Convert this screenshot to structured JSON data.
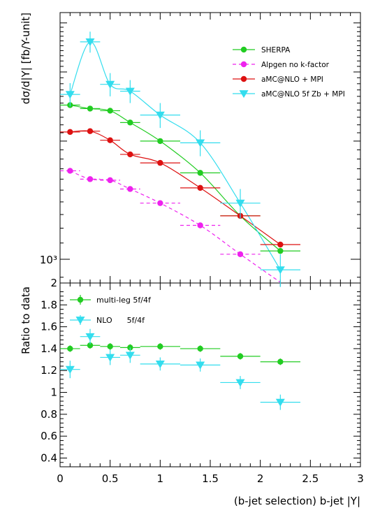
{
  "colors": {
    "sherpa": "#22cc22",
    "alpgen": "#ee22ee",
    "amcnlo": "#dd1111",
    "amcnlo_zb": "#33ddee",
    "axis": "#000000"
  },
  "chart_data": [
    {
      "type": "scatter",
      "panel": "top",
      "ylabel": "dσ/d|Y| [fb/Y-unit]",
      "yscale": "log",
      "xlim": [
        0,
        3
      ],
      "ylim": [
        870,
        4250
      ],
      "ytick_labels": [
        {
          "value": 1000,
          "label": "10³"
        }
      ],
      "legend_position": "top-right",
      "series": [
        {
          "name": "SHERPA",
          "color_key": "sherpa",
          "marker": "circle",
          "line": "solid",
          "x": [
            0.1,
            0.3,
            0.5,
            0.7,
            1.0,
            1.4,
            1.8,
            2.2
          ],
          "xerr": [
            0.1,
            0.1,
            0.1,
            0.1,
            0.2,
            0.2,
            0.2,
            0.2
          ],
          "y": [
            2470,
            2420,
            2390,
            2230,
            2000,
            1660,
            1290,
            1050
          ]
        },
        {
          "name": "Alpgen no k-factor",
          "color_key": "alpgen",
          "marker": "circle",
          "line": "dashed",
          "x": [
            0.1,
            0.3,
            0.5,
            0.7,
            1.0,
            1.4,
            1.8,
            2.2
          ],
          "xerr": [
            0.1,
            0.1,
            0.1,
            0.1,
            0.2,
            0.2,
            0.2,
            0.2
          ],
          "y": [
            1680,
            1600,
            1590,
            1510,
            1390,
            1220,
            1030,
            null
          ]
        },
        {
          "name": "aMC@NLO + MPI",
          "color_key": "amcnlo",
          "marker": "circle",
          "line": "solid",
          "x": [
            0.1,
            0.3,
            0.5,
            0.7,
            1.0,
            1.4,
            1.8,
            2.2
          ],
          "xerr": [
            0.1,
            0.1,
            0.1,
            0.1,
            0.2,
            0.2,
            0.2,
            0.2
          ],
          "y": [
            2110,
            2120,
            2010,
            1850,
            1760,
            1520,
            1290,
            1090
          ]
        },
        {
          "name": "aMC@NLO 5f Zb + MPI",
          "color_key": "amcnlo_zb",
          "marker": "triangle-down",
          "line": "solid",
          "x": [
            0.1,
            0.3,
            0.5,
            0.7,
            1.0,
            1.4,
            1.8,
            2.2
          ],
          "xerr": [
            0.1,
            0.1,
            0.1,
            0.1,
            0.2,
            0.2,
            0.2,
            0.2
          ],
          "y": [
            2630,
            3580,
            2790,
            2680,
            2330,
            1980,
            1390,
            940
          ],
          "yerr": [
            180,
            220,
            190,
            180,
            170,
            150,
            120,
            90
          ]
        }
      ]
    },
    {
      "type": "scatter",
      "panel": "bottom",
      "xlabel": "(b-jet selection) b-jet |Y|",
      "ylabel": "Ratio to data",
      "xlim": [
        0,
        3
      ],
      "ylim": [
        0.32,
        2.0
      ],
      "x_ticks": [
        0,
        0.5,
        1,
        1.5,
        2,
        2.5,
        3
      ],
      "x_tick_labels": [
        "0",
        "0.5",
        "1",
        "1.5",
        "2",
        "2.5",
        "3"
      ],
      "y_ticks": [
        0.4,
        0.6,
        0.8,
        1,
        1.2,
        1.4,
        1.6,
        1.8,
        2
      ],
      "y_tick_labels": [
        "0.4",
        "0.6",
        "0.8",
        "1",
        "1.2",
        "1.4",
        "1.6",
        "1.8",
        "2"
      ],
      "legend_position": "top-left",
      "series": [
        {
          "name": "multi-leg 5f/4f",
          "color_key": "sherpa",
          "marker": "circle",
          "x": [
            0.1,
            0.3,
            0.5,
            0.7,
            1.0,
            1.4,
            1.8,
            2.2
          ],
          "xerr": [
            0.1,
            0.1,
            0.1,
            0.1,
            0.2,
            0.2,
            0.2,
            0.2
          ],
          "y": [
            1.4,
            1.43,
            1.42,
            1.41,
            1.42,
            1.4,
            1.33,
            1.28
          ],
          "yerr": [
            0.03,
            0.03,
            0.03,
            0.03,
            0.03,
            0.03,
            0.03,
            0.03
          ]
        },
        {
          "name": "NLO      5f/4f",
          "color_key": "amcnlo_zb",
          "marker": "triangle-down",
          "x": [
            0.1,
            0.3,
            0.5,
            0.7,
            1.0,
            1.4,
            1.8,
            2.2
          ],
          "xerr": [
            0.1,
            0.1,
            0.1,
            0.1,
            0.2,
            0.2,
            0.2,
            0.2
          ],
          "y": [
            1.21,
            1.51,
            1.32,
            1.34,
            1.26,
            1.25,
            1.09,
            0.91
          ],
          "yerr": [
            0.08,
            0.07,
            0.07,
            0.07,
            0.06,
            0.06,
            0.06,
            0.07
          ]
        }
      ]
    }
  ]
}
